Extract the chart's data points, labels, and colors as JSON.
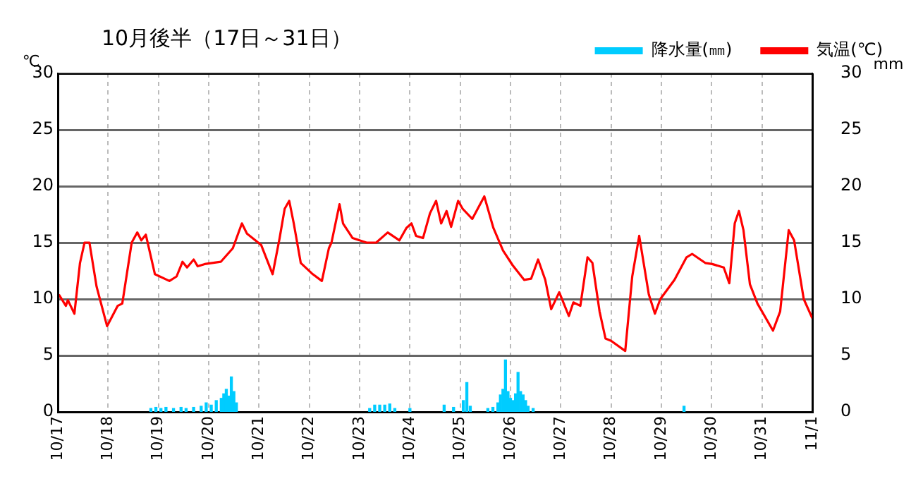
{
  "chart_data": {
    "type": "line",
    "title": "10月後半（17日～31日）",
    "ylabel": "℃",
    "y2label": "mm",
    "xlim": [
      "--10-17",
      "--11-01"
    ],
    "xticks": [
      {
        "value": "--10-17",
        "label": "10/17"
      },
      {
        "value": "--10-18",
        "label": "10/18"
      },
      {
        "value": "--10-19",
        "label": "10/19"
      },
      {
        "value": "--10-20",
        "label": "10/20"
      },
      {
        "value": "--10-21",
        "label": "10/21"
      },
      {
        "value": "--10-22",
        "label": "10/22"
      },
      {
        "value": "--10-23",
        "label": "10/23"
      },
      {
        "value": "--10-24",
        "label": "10/24"
      },
      {
        "value": "--10-25",
        "label": "10/25"
      },
      {
        "value": "--10-26",
        "label": "10/26"
      },
      {
        "value": "--10-27",
        "label": "10/27"
      },
      {
        "value": "--10-28",
        "label": "10/28"
      },
      {
        "value": "--10-29",
        "label": "10/29"
      },
      {
        "value": "--10-30",
        "label": "10/30"
      },
      {
        "value": "--10-31",
        "label": "10/31"
      },
      {
        "value": "--11-01",
        "label": "11/1"
      }
    ],
    "ylim": [
      0,
      30
    ],
    "yticks": [
      0,
      5,
      10,
      15,
      20,
      25,
      30
    ],
    "y2lim": [
      0,
      30
    ],
    "y2ticks": [
      0,
      5,
      10,
      15,
      20,
      25,
      30
    ],
    "grid": true,
    "legend": "top right",
    "marker": "none",
    "series": [
      {
        "name": "降水量(㎜)",
        "type": "bar",
        "axis": "y2",
        "color": "#00ccff",
        "x": [
          "--10-18T20:24",
          "--10-18T22:48",
          "--10-19T01:12",
          "--10-19T03:36",
          "--10-19T07:12",
          "--10-19T10:48",
          "--10-19T13:12",
          "--10-19T16:48",
          "--10-19T20:24",
          "--10-19T22:48",
          "--10-20T01:12",
          "--10-20T03:36",
          "--10-20T06:00",
          "--10-20T07:12",
          "--10-20T08:24",
          "--10-20T09:36",
          "--10-20T10:48",
          "--10-20T12:00",
          "--10-20T13:12",
          "--10-23T04:48",
          "--10-23T07:12",
          "--10-23T09:36",
          "--10-23T12:00",
          "--10-23T14:24",
          "--10-23T16:48",
          "--10-24T00:00",
          "--10-24T16:20",
          "--10-24T20:50",
          "--10-25T01:30",
          "--10-25T03:10",
          "--10-25T04:48",
          "--10-25T13:12",
          "--10-25T15:36",
          "--10-25T18:00",
          "--10-25T19:12",
          "--10-25T20:24",
          "--10-25T21:36",
          "--10-25T22:48",
          "--10-26T00:00",
          "--10-26T01:12",
          "--10-26T02:24",
          "--10-26T03:36",
          "--10-26T04:48",
          "--10-26T06:00",
          "--10-26T07:12",
          "--10-26T08:24",
          "--10-26T10:48",
          "--10-29T10:48"
        ],
        "values": [
          0.3,
          0.4,
          0.3,
          0.4,
          0.3,
          0.4,
          0.3,
          0.4,
          0.5,
          0.8,
          0.6,
          1.0,
          1.2,
          1.6,
          2.0,
          1.4,
          3.1,
          1.8,
          0.8,
          0.3,
          0.6,
          0.6,
          0.6,
          0.7,
          0.3,
          0.3,
          0.6,
          0.4,
          1.0,
          2.6,
          0.5,
          0.3,
          0.4,
          0.8,
          1.5,
          2.0,
          4.6,
          1.8,
          1.2,
          1.0,
          1.6,
          3.5,
          1.8,
          1.5,
          1.0,
          0.5,
          0.3,
          0.5
        ]
      },
      {
        "name": "気温(℃)",
        "axis": "y",
        "color": "#ff0000",
        "x": [
          "--10-17T00:30",
          "--10-17T03:50",
          "--10-17T04:48",
          "--10-17T07:55",
          "--10-17T10:35",
          "--10-17T12:45",
          "--10-17T15:05",
          "--10-17T18:30",
          "--10-17T23:30",
          "--10-18T04:35",
          "--10-18T06:45",
          "--10-18T11:15",
          "--10-18T13:55",
          "--10-18T15:50",
          "--10-18T18:00",
          "--10-18T22:20",
          "--10-19T05:15",
          "--10-19T08:40",
          "--10-19T11:30",
          "--10-19T13:40",
          "--10-19T16:50",
          "--10-19T18:45",
          "--10-19T22:05",
          "--10-20T05:45",
          "--10-20T11:30",
          "--10-20T15:50",
          "--10-20T18:15",
          "--10-21T01:00",
          "--10-21T06:30",
          "--10-21T09:50",
          "--10-21T12:15",
          "--10-21T14:25",
          "--10-21T16:35",
          "--10-21T19:55",
          "--10-22T01:40",
          "--10-22T06:00",
          "--10-22T09:20",
          "--10-22T10:35",
          "--10-22T14:25",
          "--10-22T16:05",
          "--10-22T20:40",
          "--10-23T03:20",
          "--10-23T07:55",
          "--10-23T13:25",
          "--10-23T19:00",
          "--10-23T22:20",
          "--10-24T00:45",
          "--10-24T02:55",
          "--10-24T06:15",
          "--10-24T09:35",
          "--10-24T12:30",
          "--10-24T14:55",
          "--10-24T17:30",
          "--10-24T19:40",
          "--10-24T23:00",
          "--10-25T01:10",
          "--10-25T05:45",
          "--10-25T11:30",
          "--10-25T15:50",
          "--10-25T20:25",
          "--10-26T01:00",
          "--10-26T06:30",
          "--10-26T09:50",
          "--10-26T13:10",
          "--10-26T16:35",
          "--10-26T19:25",
          "--10-26T23:15",
          "--10-27T03:50",
          "--10-27T06:00",
          "--10-27T09:20",
          "--10-27T12:45",
          "--10-27T15:05",
          "--10-27T18:30",
          "--10-27T21:20",
          "--10-28T00:00",
          "--10-28T06:45",
          "--10-28T10:05",
          "--10-28T13:25",
          "--10-28T18:00",
          "--10-28T20:55",
          "--10-28T23:30",
          "--10-29T06:15",
          "--10-29T12:00",
          "--10-29T14:40",
          "--10-29T20:55",
          "--10-30T00:15",
          "--10-30T05:45",
          "--10-30T08:25",
          "--10-30T11:00",
          "--10-30T13:00",
          "--10-30T15:10",
          "--10-30T18:15",
          "--10-30T21:50",
          "--10-31T05:15",
          "--10-31T08:40",
          "--10-31T12:45",
          "--10-31T15:20",
          "--10-31T19:55",
          "--11-01T00:00"
        ],
        "values": [
          10.4,
          9.4,
          9.9,
          8.7,
          13.2,
          15.0,
          15.0,
          11.1,
          7.6,
          9.4,
          9.6,
          15.0,
          15.9,
          15.2,
          15.7,
          12.2,
          11.6,
          12.0,
          13.3,
          12.8,
          13.5,
          12.9,
          13.1,
          13.3,
          14.5,
          16.7,
          15.8,
          14.8,
          12.2,
          15.4,
          18.0,
          18.7,
          16.7,
          13.2,
          12.2,
          11.6,
          14.5,
          15.0,
          18.4,
          16.7,
          15.4,
          15.0,
          15.0,
          15.9,
          15.2,
          16.3,
          16.7,
          15.6,
          15.4,
          17.6,
          18.7,
          16.7,
          17.8,
          16.4,
          18.7,
          18.0,
          17.1,
          19.1,
          16.3,
          14.3,
          13.0,
          11.7,
          11.8,
          13.5,
          11.7,
          9.1,
          10.6,
          8.5,
          9.7,
          9.4,
          13.7,
          13.2,
          8.9,
          6.5,
          6.3,
          5.4,
          12.0,
          15.6,
          10.4,
          8.7,
          10.0,
          11.7,
          13.7,
          14.0,
          13.2,
          13.1,
          12.8,
          11.4,
          16.7,
          17.8,
          16.1,
          11.3,
          9.6,
          7.2,
          8.9,
          16.1,
          15.2,
          10.0,
          8.3
        ]
      }
    ]
  }
}
